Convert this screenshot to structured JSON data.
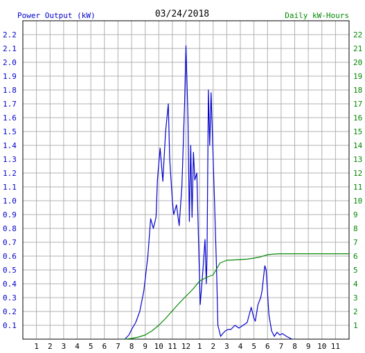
{
  "chart_data": {
    "type": "line",
    "title": "03/24/2018",
    "ylabel_left": "Power Output (kW)",
    "ylabel_right": "Daily kW-Hours",
    "x_tick_labels": [
      "1",
      "2",
      "3",
      "4",
      "5",
      "6",
      "7",
      "8",
      "9",
      "10",
      "11",
      "12",
      "1",
      "2",
      "3",
      "4",
      "5",
      "6",
      "7",
      "8",
      "9",
      "10",
      "11"
    ],
    "x_range_hours": [
      0,
      24
    ],
    "y_left_range": [
      0,
      2.3
    ],
    "y_left_ticks": [
      "0.1",
      "0.2",
      "0.3",
      "0.4",
      "0.5",
      "0.6",
      "0.7",
      "0.8",
      "0.9",
      "1.0",
      "1.1",
      "1.2",
      "1.3",
      "1.4",
      "1.5",
      "1.6",
      "1.7",
      "1.8",
      "1.9",
      "2.0",
      "2.1",
      "2.2"
    ],
    "y_right_range": [
      0,
      23
    ],
    "y_right_ticks": [
      "1",
      "2",
      "3",
      "4",
      "5",
      "6",
      "7",
      "8",
      "9",
      "10",
      "11",
      "12",
      "13",
      "14",
      "15",
      "16",
      "17",
      "18",
      "19",
      "20",
      "21",
      "22"
    ],
    "grid": true,
    "series": [
      {
        "axis": "left",
        "color": "#0000cc",
        "x": [
          7.5,
          7.8,
          8.0,
          8.3,
          8.6,
          8.9,
          9.2,
          9.4,
          9.6,
          9.8,
          9.9,
          10.1,
          10.3,
          10.5,
          10.7,
          10.8,
          11.0,
          11.1,
          11.3,
          11.5,
          11.7,
          11.9,
          12.0,
          12.15,
          12.25,
          12.35,
          12.45,
          12.55,
          12.65,
          12.8,
          12.9,
          13.05,
          13.25,
          13.4,
          13.5,
          13.55,
          13.65,
          13.75,
          13.85,
          14.0,
          14.1,
          14.25,
          14.35,
          14.45,
          14.55,
          14.7,
          14.9,
          15.1,
          15.3,
          15.6,
          15.9,
          16.2,
          16.5,
          16.8,
          17.0,
          17.1,
          17.3,
          17.5,
          17.6,
          17.8,
          17.9,
          18.1,
          18.3,
          18.5,
          18.7,
          18.9,
          19.1,
          19.4,
          19.6,
          19.8
        ],
        "y": [
          0.0,
          0.03,
          0.07,
          0.12,
          0.2,
          0.35,
          0.6,
          0.87,
          0.8,
          0.88,
          1.15,
          1.38,
          1.14,
          1.5,
          1.7,
          1.3,
          1.0,
          0.9,
          0.97,
          0.82,
          1.1,
          1.7,
          2.12,
          1.6,
          0.85,
          1.4,
          0.88,
          1.35,
          1.15,
          1.2,
          0.8,
          0.25,
          0.5,
          0.72,
          0.4,
          0.6,
          1.8,
          1.4,
          1.78,
          1.3,
          1.0,
          0.5,
          0.1,
          0.06,
          0.02,
          0.04,
          0.06,
          0.07,
          0.07,
          0.1,
          0.08,
          0.1,
          0.12,
          0.23,
          0.15,
          0.13,
          0.25,
          0.3,
          0.35,
          0.53,
          0.5,
          0.18,
          0.06,
          0.02,
          0.05,
          0.03,
          0.04,
          0.02,
          0.01,
          0.0
        ]
      },
      {
        "axis": "right",
        "color": "#008800",
        "x": [
          7.5,
          8.0,
          8.5,
          9.0,
          9.5,
          10.0,
          10.5,
          11.0,
          11.5,
          12.0,
          12.5,
          13.0,
          13.5,
          14.0,
          14.5,
          15.0,
          15.5,
          16.0,
          16.5,
          17.0,
          17.5,
          18.0,
          18.5,
          19.0,
          20.0,
          21.0,
          22.0,
          23.0,
          24.0
        ],
        "y": [
          0.0,
          0.05,
          0.15,
          0.3,
          0.6,
          1.0,
          1.5,
          2.05,
          2.6,
          3.1,
          3.6,
          4.2,
          4.45,
          4.65,
          5.5,
          5.7,
          5.72,
          5.75,
          5.78,
          5.85,
          5.95,
          6.1,
          6.15,
          6.17,
          6.17,
          6.17,
          6.17,
          6.17,
          6.17
        ]
      }
    ]
  }
}
